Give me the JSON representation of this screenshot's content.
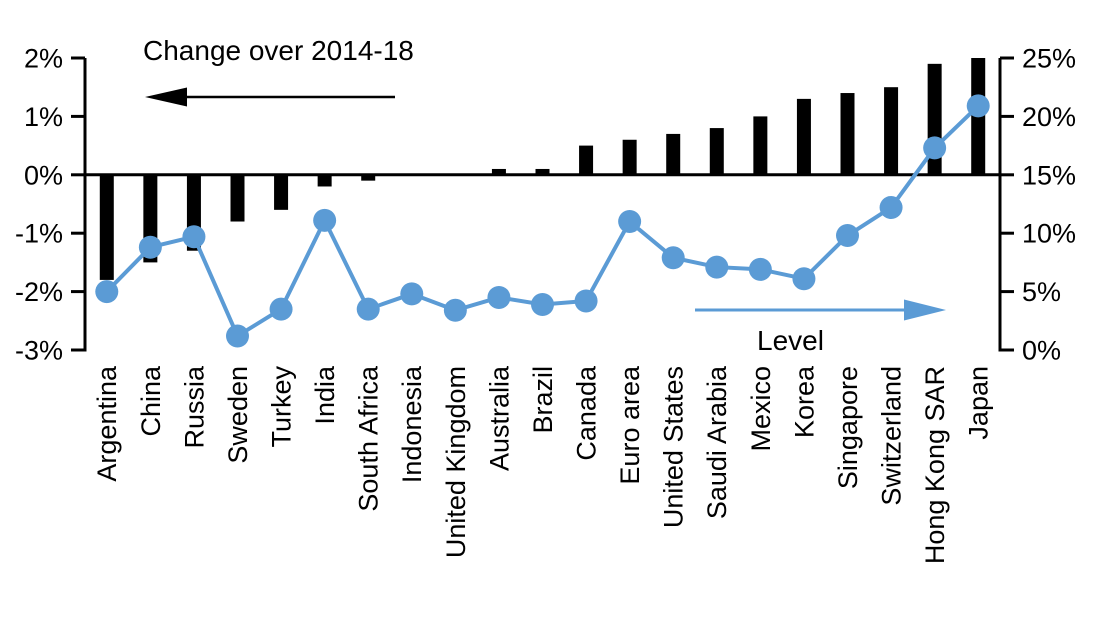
{
  "chart_data": {
    "type": "combo-bar-line",
    "title": "",
    "categories": [
      "Argentina",
      "China",
      "Russia",
      "Sweden",
      "Turkey",
      "India",
      "South Africa",
      "Indonesia",
      "United Kingdom",
      "Australia",
      "Brazil",
      "Canada",
      "Euro area",
      "United States",
      "Saudi Arabia",
      "Mexico",
      "Korea",
      "Singapore",
      "Switzerland",
      "Hong Kong SAR",
      "Japan"
    ],
    "series": [
      {
        "name": "Change over 2014-18",
        "type": "bar",
        "axis": "left",
        "color": "#000000",
        "values": [
          -1.8,
          -1.5,
          -1.3,
          -0.8,
          -0.6,
          -0.2,
          -0.1,
          0,
          0,
          0.1,
          0.1,
          0.5,
          0.6,
          0.7,
          0.8,
          1.0,
          1.3,
          1.4,
          1.5,
          1.9,
          2.0
        ]
      },
      {
        "name": "Level",
        "type": "line",
        "axis": "right",
        "color": "#5B9BD5",
        "values": [
          5.0,
          8.8,
          9.7,
          1.2,
          3.5,
          11.1,
          3.5,
          4.8,
          3.4,
          4.5,
          3.9,
          4.2,
          11.0,
          7.9,
          7.1,
          6.9,
          6.1,
          9.8,
          12.2,
          17.3,
          20.9
        ]
      }
    ],
    "left_axis": {
      "tick_labels": [
        "2%",
        "1%",
        "0%",
        "-1%",
        "-2%",
        "-3%"
      ],
      "tick_values": [
        2,
        1,
        0,
        -1,
        -2,
        -3
      ],
      "range": [
        -3,
        2
      ]
    },
    "right_axis": {
      "tick_labels": [
        "25%",
        "20%",
        "15%",
        "10%",
        "5%",
        "0%"
      ],
      "tick_values": [
        25,
        20,
        15,
        10,
        5,
        0
      ],
      "range": [
        0,
        25
      ]
    },
    "annotations": {
      "bar_label": "Change over 2014-18",
      "line_label": "Level"
    },
    "legend_position": "in-plot-arrows",
    "grid": false
  },
  "colors": {
    "bar": "#000000",
    "line": "#5B9BD5",
    "text": "#000000",
    "background": "#FFFFFF"
  }
}
